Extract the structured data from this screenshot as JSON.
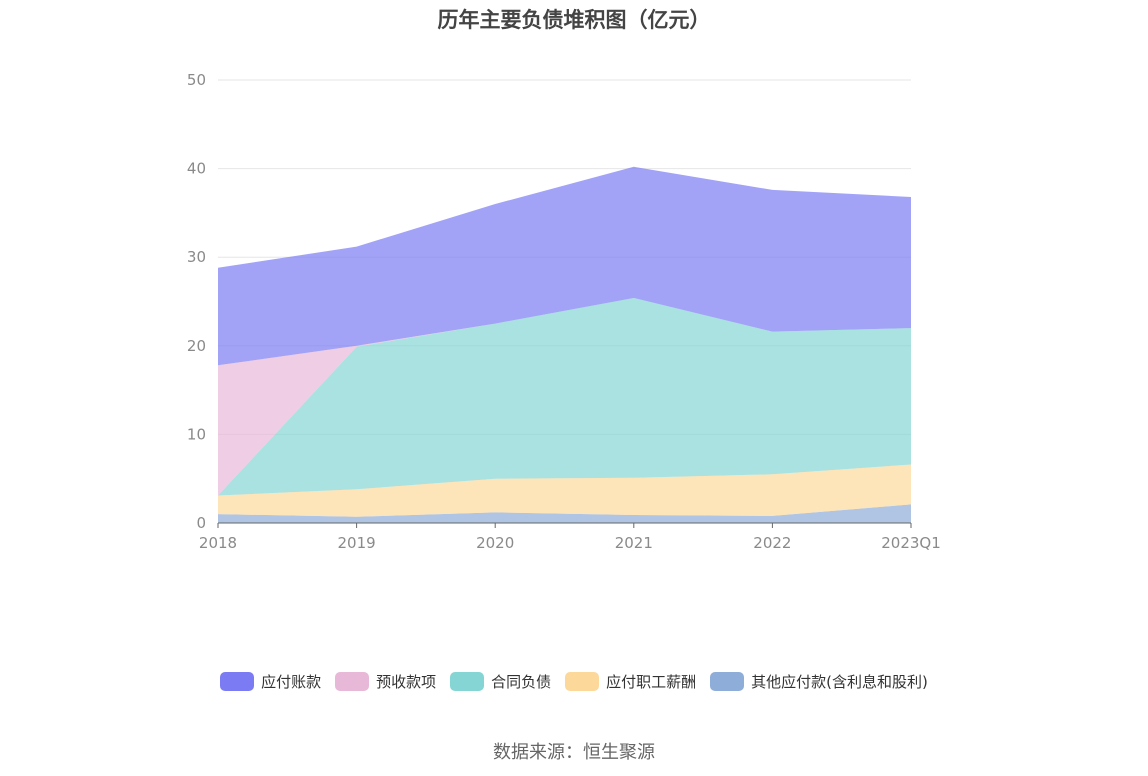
{
  "chart_data": {
    "type": "area",
    "stacked": true,
    "title": "历年主要负债堆积图（亿元）",
    "categories": [
      "2018",
      "2019",
      "2020",
      "2021",
      "2022",
      "2023Q1"
    ],
    "ylim": [
      0,
      50
    ],
    "yticks": [
      0,
      10,
      20,
      30,
      40,
      50
    ],
    "grid": true,
    "legend_position": "bottom",
    "series": [
      {
        "name": "其他应付款(含利息和股利)",
        "color": "#8fadd9",
        "values": [
          1.0,
          0.7,
          1.2,
          0.9,
          0.8,
          2.1
        ]
      },
      {
        "name": "应付职工薪酬",
        "color": "#fcd89b",
        "values": [
          2.1,
          3.1,
          3.8,
          4.2,
          4.7,
          4.5
        ]
      },
      {
        "name": "合同负债",
        "color": "#85d5d4",
        "values": [
          0.0,
          16.1,
          17.5,
          20.3,
          16.1,
          15.4
        ]
      },
      {
        "name": "预收款项",
        "color": "#e8b8d8",
        "values": [
          14.7,
          0.1,
          0.0,
          0.0,
          0.0,
          0.0
        ]
      },
      {
        "name": "应付账款",
        "color": "#7b7cf3",
        "values": [
          11.0,
          11.2,
          13.5,
          14.8,
          16.0,
          14.8
        ]
      }
    ],
    "legend_order": [
      "应付账款",
      "预收款项",
      "合同负债",
      "应付职工薪酬",
      "其他应付款(含利息和股利)"
    ]
  },
  "source_label": "数据来源：恒生聚源"
}
